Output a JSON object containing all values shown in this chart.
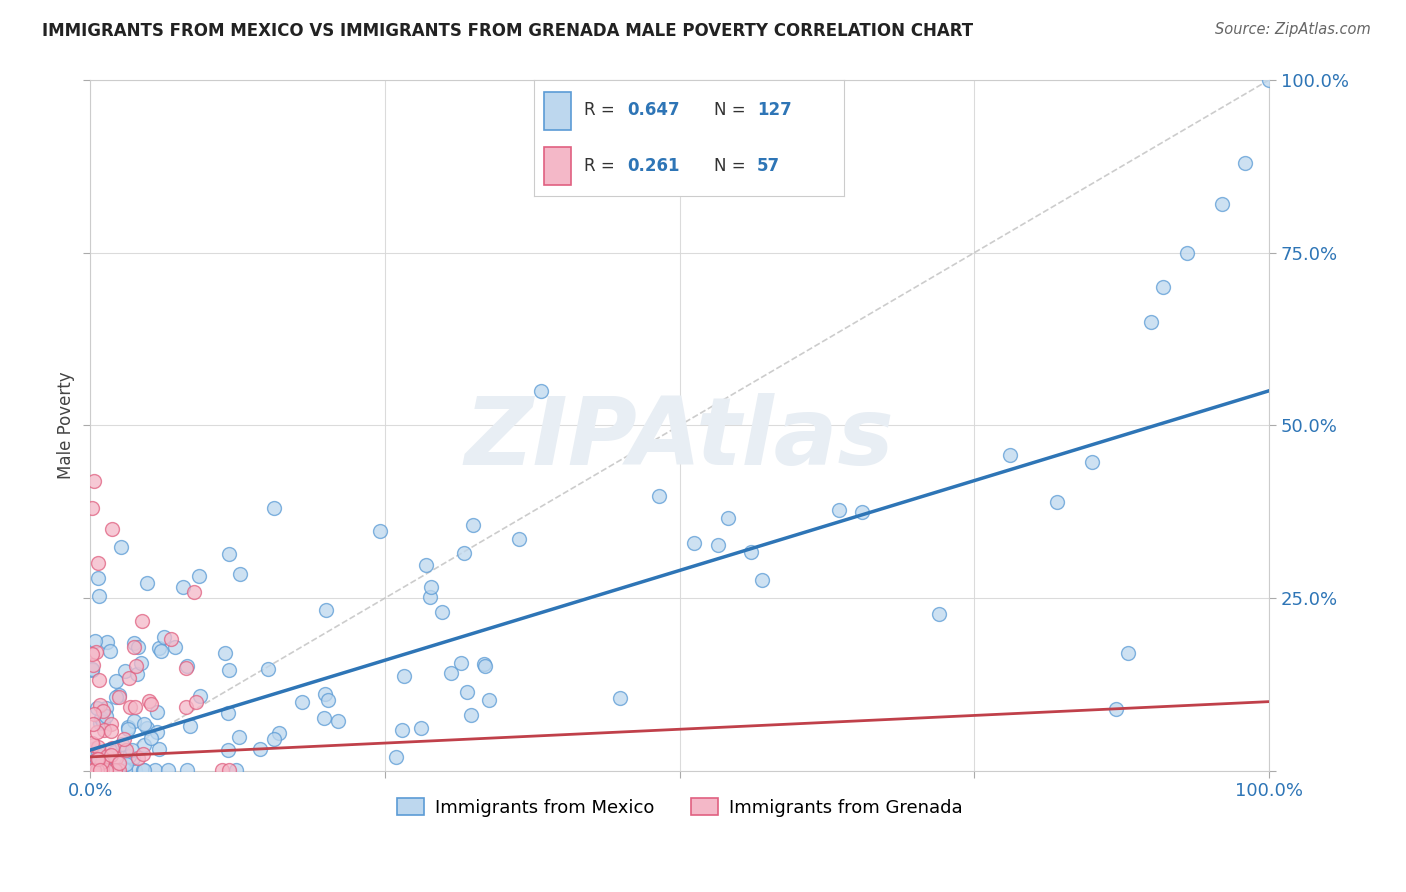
{
  "title": "IMMIGRANTS FROM MEXICO VS IMMIGRANTS FROM GRENADA MALE POVERTY CORRELATION CHART",
  "source": "Source: ZipAtlas.com",
  "ylabel": "Male Poverty",
  "mexico_color_edge": "#5b9bd5",
  "mexico_color_fill": "#bdd7ee",
  "grenada_color_edge": "#e06080",
  "grenada_color_fill": "#f4b8c8",
  "mexico_R": 0.647,
  "mexico_N": 127,
  "grenada_R": 0.261,
  "grenada_N": 57,
  "legend_color": "#2e75b6",
  "regression_mexico_color": "#2e75b6",
  "regression_grenada_color": "#c0404a",
  "diagonal_color": "#c0c0c0",
  "background_color": "#ffffff",
  "grid_color": "#d8d8d8",
  "watermark_color": "#e8eef4",
  "title_fontsize": 12,
  "tick_fontsize": 13,
  "ylabel_fontsize": 12,
  "scatter_size": 100,
  "scatter_alpha": 0.75,
  "xlim": [
    0,
    1
  ],
  "ylim": [
    0,
    1
  ]
}
